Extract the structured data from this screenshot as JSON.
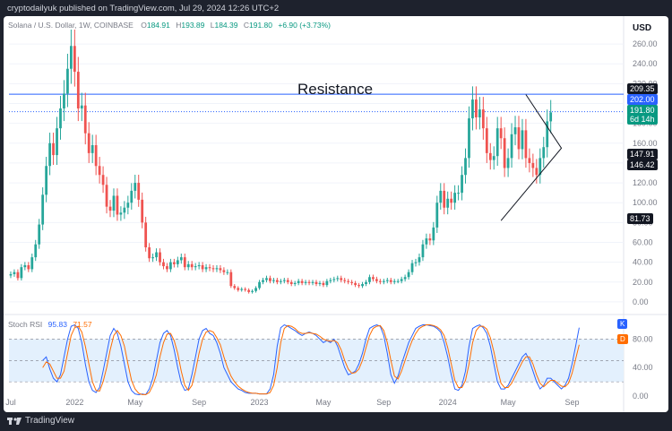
{
  "header": {
    "publisher": "cryptodailyuk published on TradingView.com, Jul 29, 2024 12:26 UTC+2"
  },
  "legend": {
    "symbol": "Solana / U.S. Dollar, 1W, COINBASE",
    "o_label": "O",
    "o_value": "184.91",
    "h_label": "H",
    "h_value": "193.89",
    "l_label": "L",
    "l_value": "184.39",
    "c_label": "C",
    "c_value": "191.80",
    "change": "+6.90 (+3.73%)"
  },
  "currency": "USD",
  "annotation": "Resistance",
  "price_tags": {
    "p1": "209.35",
    "p2": "202.00",
    "p3": "191.80",
    "countdown": "6d 14h",
    "p4": "147.91",
    "p5": "146.42",
    "p6": "81.73"
  },
  "rsi_legend": {
    "name": "Stoch RSI",
    "k_value": "95.83",
    "d_value": "71.57",
    "k_tag": "K",
    "d_tag": "D"
  },
  "footer": {
    "brand": "TradingView"
  },
  "colors": {
    "up": "#26a69a",
    "down": "#ef5350",
    "k_line": "#2962ff",
    "d_line": "#ff6d00",
    "resistance_line": "#2962ff",
    "rsi_band": "#e3f0fd"
  },
  "chart_data": [
    {
      "type": "candlestick",
      "title": "Solana / U.S. Dollar, 1W, COINBASE",
      "x_tick_labels": [
        "Jul",
        "2022",
        "May",
        "Sep",
        "2023",
        "May",
        "Sep",
        "2024",
        "May",
        "Sep"
      ],
      "y_tick_labels": [
        "0.00",
        "20.00",
        "40.00",
        "60.00",
        "80.00",
        "100.00",
        "120.00",
        "140.00",
        "160.00",
        "180.00",
        "200.00",
        "220.00",
        "240.00",
        "260.00"
      ],
      "ylim": [
        -10,
        270
      ],
      "x_count": 167,
      "values_close": [
        28,
        30,
        24,
        35,
        37,
        33,
        45,
        58,
        78,
        108,
        137,
        160,
        148,
        175,
        195,
        210,
        235,
        258,
        232,
        195,
        198,
        170,
        150,
        158,
        137,
        128,
        118,
        96,
        92,
        107,
        88,
        90,
        95,
        100,
        112,
        120,
        103,
        80,
        55,
        44,
        45,
        50,
        40,
        36,
        33,
        40,
        38,
        42,
        45,
        35,
        38,
        35,
        36,
        37,
        33,
        35,
        34,
        33,
        34,
        32,
        30,
        30,
        16,
        14,
        12,
        13,
        12,
        10,
        11,
        14,
        20,
        22,
        24,
        21,
        22,
        20,
        21,
        22,
        20,
        18,
        19,
        21,
        19,
        20,
        19,
        20,
        18,
        19,
        17,
        21,
        22,
        23,
        24,
        22,
        21,
        20,
        19,
        17,
        16,
        18,
        20,
        25,
        23,
        21,
        20,
        21,
        22,
        20,
        21,
        21,
        23,
        25,
        30,
        39,
        40,
        45,
        58,
        64,
        62,
        75,
        100,
        112,
        95,
        104,
        100,
        110,
        110,
        128,
        145,
        185,
        204,
        186,
        194,
        175,
        150,
        143,
        147,
        175,
        165,
        135,
        145,
        169,
        176,
        154,
        173,
        145,
        140,
        135,
        128,
        145,
        156,
        182,
        191
      ],
      "ohlc_last": {
        "open": 184.91,
        "high": 193.89,
        "low": 184.39,
        "close": 191.8
      },
      "horizontal_lines": [
        {
          "name": "Resistance",
          "value": 209.35
        },
        {
          "value": 191.8
        }
      ],
      "triangle": {
        "x": [
          138,
          145,
          148,
          155
        ],
        "y": [
          82,
          209,
          133,
          155
        ],
        "description": "symmetrical triangle from Jan 2024 to Aug 2024"
      },
      "labels": [
        "Resistance"
      ]
    },
    {
      "type": "line",
      "title": "Stoch RSI",
      "y_tick_labels": [
        "0.00",
        "40.00",
        "80.00"
      ],
      "ylim": [
        -5,
        112
      ],
      "bands": [
        80,
        50,
        20
      ],
      "series": [
        {
          "name": "K",
          "values": [
            50,
            55,
            38,
            25,
            20,
            30,
            55,
            80,
            98,
            100,
            95,
            75,
            45,
            20,
            8,
            5,
            12,
            35,
            60,
            85,
            95,
            88,
            70,
            45,
            20,
            8,
            3,
            2,
            3,
            2,
            10,
            25,
            50,
            75,
            88,
            92,
            85,
            65,
            40,
            18,
            8,
            10,
            30,
            55,
            80,
            92,
            95,
            88,
            85,
            75,
            60,
            40,
            30,
            20,
            15,
            10,
            8,
            5,
            4,
            4,
            4,
            3,
            3,
            3,
            10,
            30,
            70,
            96,
            100,
            98,
            95,
            92,
            88,
            85,
            88,
            90,
            88,
            85,
            80,
            75,
            78,
            75,
            80,
            70,
            55,
            40,
            30,
            32,
            35,
            45,
            60,
            80,
            95,
            98,
            100,
            98,
            85,
            60,
            30,
            18,
            28,
            45,
            60,
            75,
            85,
            95,
            98,
            100,
            100,
            99,
            98,
            95,
            90,
            75,
            55,
            30,
            10,
            8,
            15,
            35,
            70,
            95,
            98,
            100,
            96,
            88,
            70,
            45,
            20,
            10,
            10,
            15,
            25,
            35,
            45,
            55,
            60,
            50,
            35,
            20,
            10,
            15,
            25,
            25,
            20,
            15,
            10,
            15,
            25,
            45,
            70,
            96
          ]
        },
        {
          "name": "D",
          "values": [
            40,
            48,
            45,
            35,
            25,
            25,
            35,
            60,
            85,
            96,
            98,
            90,
            70,
            45,
            20,
            8,
            7,
            20,
            40,
            65,
            85,
            92,
            85,
            70,
            45,
            22,
            10,
            4,
            2,
            2,
            5,
            15,
            30,
            55,
            75,
            87,
            88,
            78,
            60,
            35,
            15,
            8,
            15,
            35,
            60,
            80,
            90,
            92,
            90,
            82,
            72,
            55,
            40,
            28,
            20,
            14,
            10,
            7,
            5,
            4,
            4,
            3,
            3,
            3,
            5,
            15,
            40,
            75,
            95,
            99,
            98,
            95,
            90,
            88,
            88,
            89,
            88,
            87,
            84,
            80,
            78,
            77,
            78,
            75,
            65,
            50,
            38,
            32,
            33,
            38,
            50,
            68,
            85,
            95,
            98,
            99,
            92,
            75,
            50,
            28,
            24,
            35,
            50,
            65,
            78,
            88,
            95,
            98,
            100,
            100,
            99,
            97,
            93,
            85,
            68,
            45,
            22,
            12,
            12,
            22,
            45,
            75,
            92,
            98,
            98,
            94,
            82,
            62,
            38,
            18,
            12,
            12,
            18,
            28,
            38,
            48,
            55,
            55,
            45,
            30,
            18,
            13,
            18,
            22,
            22,
            18,
            14,
            13,
            18,
            32,
            52,
            72
          ]
        }
      ],
      "legend_values": {
        "K": 95.83,
        "D": 71.57
      }
    }
  ]
}
